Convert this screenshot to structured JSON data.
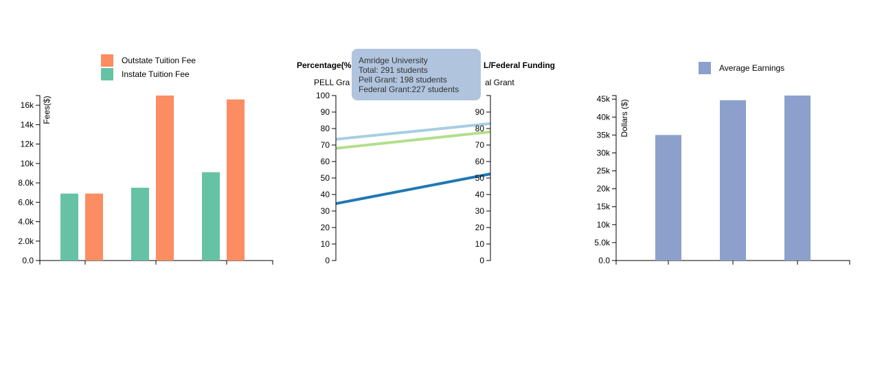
{
  "chart_data": [
    {
      "type": "bar",
      "legend": [
        "Outstate Tuition Fee",
        "Instate Tuition Fee"
      ],
      "ylabel": "Fees($)",
      "ylim": [
        0,
        17000
      ],
      "yticks": [
        "0.0",
        "2.0k",
        "4.0k",
        "6.0k",
        "8.0k",
        "10k",
        "12k",
        "14k",
        "16k"
      ],
      "categories": [
        "",
        "",
        ""
      ],
      "series": [
        {
          "name": "Instate Tuition Fee",
          "color": "#66c2a5",
          "values": [
            6900,
            7500,
            9100
          ]
        },
        {
          "name": "Outstate Tuition Fee",
          "color": "#fc8d62",
          "values": [
            6900,
            17000,
            16600
          ]
        }
      ]
    },
    {
      "type": "line",
      "title_left": "Percentage(%",
      "title_right": "L/Federal Funding",
      "left_axis_label": "PELL Gra",
      "right_axis_label": "al Grant",
      "ylim": [
        0,
        100
      ],
      "left_ticks": [
        "0",
        "10",
        "20",
        "30",
        "40",
        "50",
        "60",
        "70",
        "80",
        "90",
        "100"
      ],
      "right_ticks": [
        "0",
        "10",
        "20",
        "30",
        "40",
        "50",
        "60",
        "70",
        "80",
        "90"
      ],
      "series": [
        {
          "color": "#a6cee3",
          "values": [
            73.5,
            83
          ]
        },
        {
          "color": "#b2df8a",
          "values": [
            68,
            78
          ]
        },
        {
          "color": "#1f78b4",
          "values": [
            34.5,
            52.5
          ]
        }
      ],
      "tooltip": [
        "Amridge University",
        "Total: 291 students",
        "Pell Grant: 198 students",
        "Federal Grant:227 students"
      ]
    },
    {
      "type": "bar",
      "legend": [
        "Average Earnings"
      ],
      "ylabel": "Dollars ($)",
      "ylim": [
        0,
        46000
      ],
      "yticks": [
        "0.0",
        "5.0k",
        "10k",
        "15k",
        "20k",
        "25k",
        "30k",
        "35k",
        "40k",
        "45k"
      ],
      "categories": [
        "",
        "",
        ""
      ],
      "series": [
        {
          "name": "Average Earnings",
          "color": "#8da0cb",
          "values": [
            35000,
            44700,
            46000
          ]
        }
      ]
    }
  ]
}
